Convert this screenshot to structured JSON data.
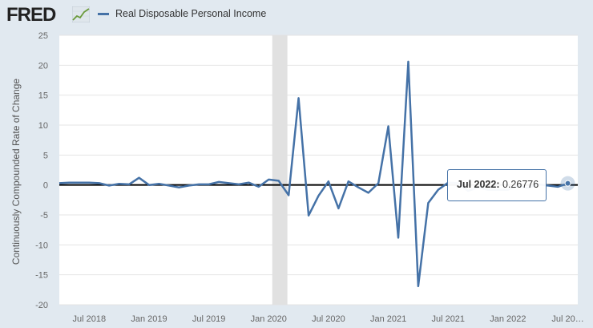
{
  "header": {
    "logo_text": "FRED",
    "logo_icon": "line-chart-icon",
    "series_name": "Real Disposable Personal Income",
    "accent_color": "#4572a7"
  },
  "tooltip": {
    "date": "Jul 2022",
    "value": "0.26776"
  },
  "chart_data": {
    "type": "line",
    "title": "",
    "xlabel": "",
    "ylabel": "Continuously Compounded Rate of Change",
    "ylim": [
      -20,
      25
    ],
    "xlim": [
      "2018-04",
      "2022-08"
    ],
    "grid": true,
    "legend": "top-left",
    "y_ticks": [
      -20,
      -15,
      -10,
      -5,
      0,
      5,
      10,
      15,
      20,
      25
    ],
    "x_tick_labels": [
      "Jul 2018",
      "Jan 2019",
      "Jul 2019",
      "Jan 2020",
      "Jul 2020",
      "Jan 2021",
      "Jul 2021",
      "Jan 2022",
      "Jul 20…"
    ],
    "recession_shading": [
      "2020-02",
      "2020-04"
    ],
    "zero_line": 0,
    "series": [
      {
        "name": "Real Disposable Personal Income",
        "color": "#4572a7",
        "x": [
          "2018-04",
          "2018-05",
          "2018-06",
          "2018-07",
          "2018-08",
          "2018-09",
          "2018-10",
          "2018-11",
          "2018-12",
          "2019-01",
          "2019-02",
          "2019-03",
          "2019-04",
          "2019-05",
          "2019-06",
          "2019-07",
          "2019-08",
          "2019-09",
          "2019-10",
          "2019-11",
          "2019-12",
          "2020-01",
          "2020-02",
          "2020-03",
          "2020-04",
          "2020-05",
          "2020-06",
          "2020-07",
          "2020-08",
          "2020-09",
          "2020-10",
          "2020-11",
          "2020-12",
          "2021-01",
          "2021-02",
          "2021-03",
          "2021-04",
          "2021-05",
          "2021-06",
          "2021-07",
          "2021-08",
          "2021-09",
          "2021-10",
          "2021-11",
          "2021-12",
          "2022-01",
          "2022-02",
          "2022-03",
          "2022-04",
          "2022-05",
          "2022-06",
          "2022-07"
        ],
        "values": [
          0.3,
          0.4,
          0.4,
          0.4,
          0.3,
          -0.1,
          0.2,
          0.1,
          1.2,
          0.0,
          0.2,
          -0.1,
          -0.4,
          -0.1,
          0.1,
          0.1,
          0.5,
          0.3,
          0.1,
          0.4,
          -0.3,
          0.9,
          0.7,
          -1.7,
          14.5,
          -5.1,
          -1.8,
          0.6,
          -3.9,
          0.6,
          -0.4,
          -1.3,
          0.3,
          9.8,
          -8.8,
          20.6,
          -16.9,
          -3.0,
          -0.8,
          0.4,
          0.3,
          -1.0,
          -0.4,
          -0.8,
          -0.8,
          -0.8,
          -0.2,
          -0.5,
          0.1,
          -0.1,
          -0.3,
          0.26776
        ]
      }
    ]
  }
}
